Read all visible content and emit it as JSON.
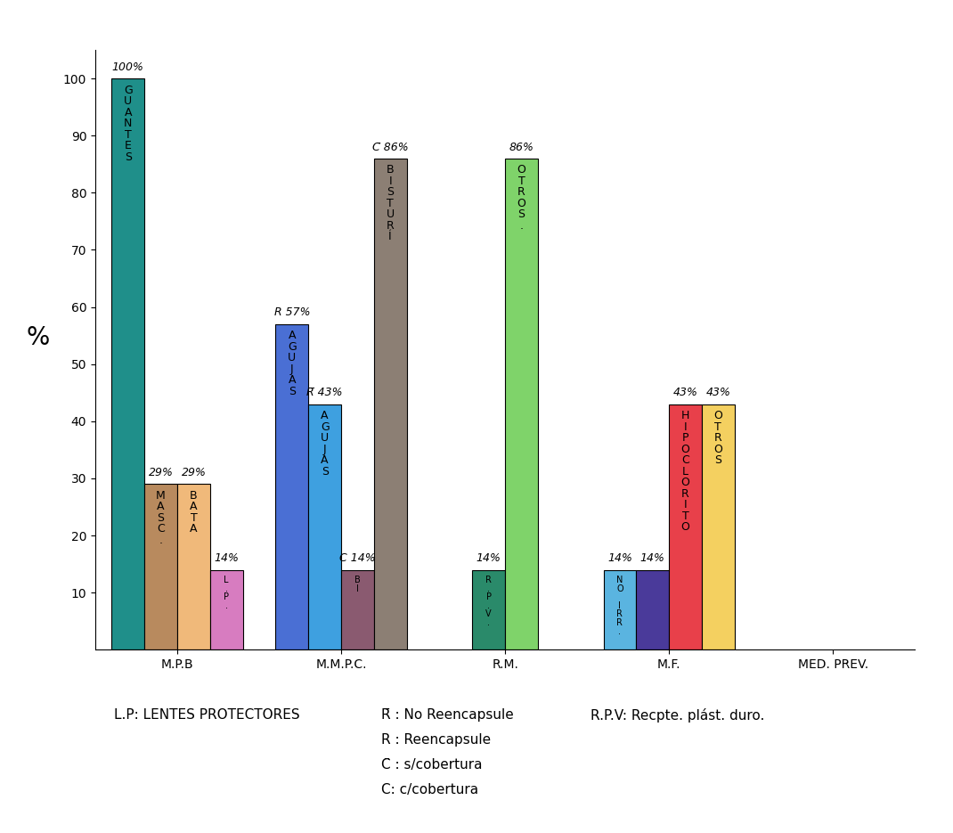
{
  "chart_data": {
    "type": "bar",
    "ylabel": "%",
    "categories": [
      "M.P.B",
      "M.M.P.C.",
      "R.M.",
      "M.F.",
      "MED. PREV."
    ],
    "groups": [
      {
        "texts": [
          "GUANTES",
          "MASC.",
          "BATA",
          "L.P."
        ],
        "values": [
          100,
          29,
          29,
          14
        ],
        "value_labels": [
          "100%",
          "29%",
          "29%",
          "14%"
        ],
        "colors": [
          "#1f8f8a",
          "#b88a5e",
          "#f0b97a",
          "#d77cc0"
        ]
      },
      {
        "texts": [
          "AGUJAS",
          "AGUJAS",
          "BI",
          "BISTURÍ"
        ],
        "values": [
          57,
          43,
          14,
          86
        ],
        "value_labels": [
          "R 57%",
          "R̄ 43%",
          "C 14%",
          "C̄ 86%"
        ],
        "colors": [
          "#4a6fd4",
          "#3ea0e0",
          "#8a5a70",
          "#8c7f74"
        ]
      },
      {
        "texts": [
          "R.P.V.",
          "OTROS."
        ],
        "values": [
          14,
          86
        ],
        "value_labels": [
          "14%",
          "86%"
        ],
        "colors": [
          "#2a8a6a",
          "#7fd36a"
        ]
      },
      {
        "texts": [
          "NO IRR.",
          null,
          "HIPOCLORITO",
          "OTROS"
        ],
        "values": [
          14,
          14,
          43,
          43
        ],
        "value_labels": [
          "14%",
          "14%",
          "43%",
          "43%"
        ],
        "colors": [
          "#5ab4e0",
          "#4a3a9a",
          "#e8404a",
          "#f4d060"
        ]
      },
      {
        "texts": [],
        "values": [],
        "value_labels": [],
        "colors": []
      }
    ],
    "notes": [
      [
        "L.P: LENTES PROTECTORES"
      ],
      [
        "R̄ : No Reencapsule",
        "R : Reencapsule",
        "C̄ : s/cobertura",
        "C: c/cobertura"
      ],
      [
        "R.P.V: Recpte. plást. duro."
      ]
    ],
    "ylim": [
      0,
      105
    ],
    "yticks": [
      10,
      20,
      30,
      40,
      50,
      60,
      70,
      80,
      90,
      100
    ],
    "grid": false,
    "data_labels": true
  }
}
